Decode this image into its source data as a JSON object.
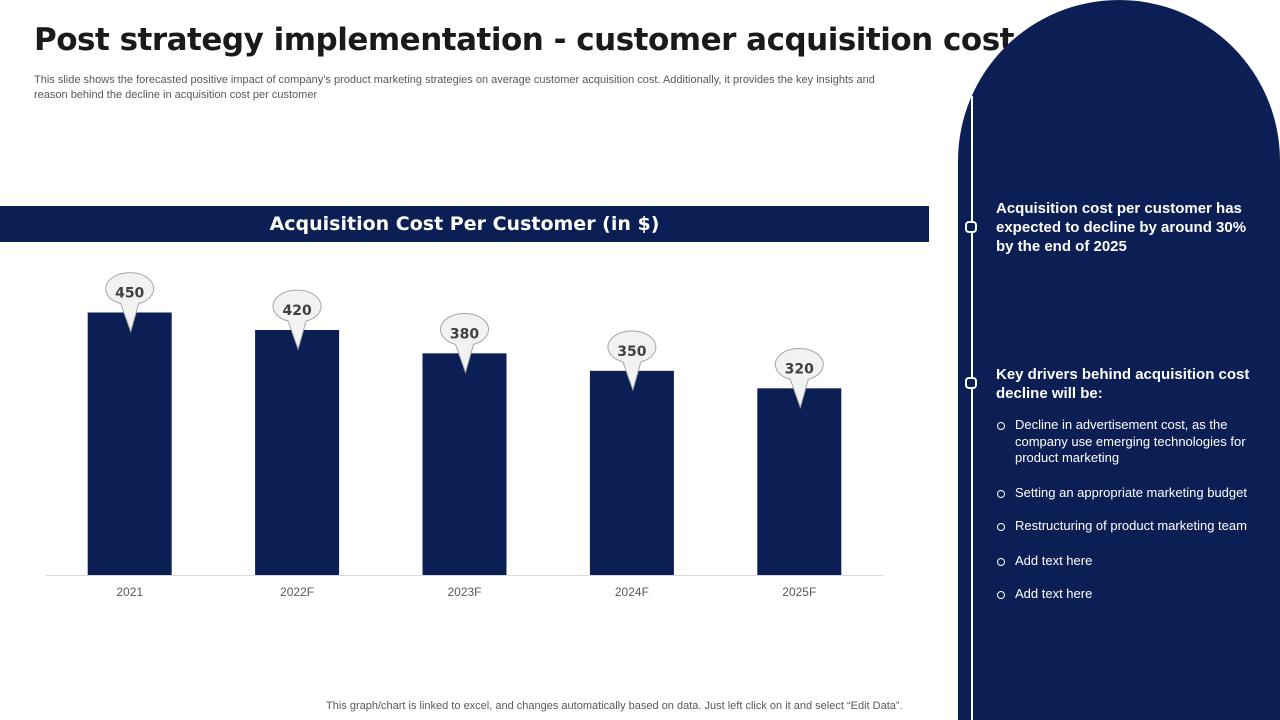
{
  "header": {
    "title": "Post strategy implementation - customer acquisition cost",
    "subtitle": "This slide shows the forecasted positive impact of company’s product marketing strategies on average customer acquisition cost. Additionally, it provides the key insights and reason behind the decline in acquisition cost per customer"
  },
  "chart_data": {
    "type": "bar",
    "title": "Acquisition Cost Per Customer (in $)",
    "categories": [
      "2021",
      "2022F",
      "2023F",
      "2024F",
      "2025F"
    ],
    "values": [
      450,
      420,
      380,
      350,
      320
    ],
    "xlabel": "",
    "ylabel": "",
    "ylim": [
      0,
      480
    ],
    "grid": false,
    "legend": "none",
    "bar_color": "#0b1f55",
    "data_labels": true
  },
  "footnote": "This graph/chart is linked to excel,  and changes automatically based on data. Just left click on it and select “Edit Data”.",
  "panel": {
    "insight": "Acquisition cost per customer has expected to decline by around 30% by the end of 2025",
    "drivers_heading": "Key drivers behind acquisition cost  decline will be:",
    "drivers": [
      "Decline in advertisement cost, as the company use emerging technologies for product marketing",
      "Setting an appropriate marketing budget",
      "Restructuring of product marketing team",
      "Add text here",
      "Add text here"
    ]
  },
  "colors": {
    "navy": "#0b1f55",
    "callout_fill": "#f2f2f2",
    "callout_border": "#a6a6a6"
  }
}
